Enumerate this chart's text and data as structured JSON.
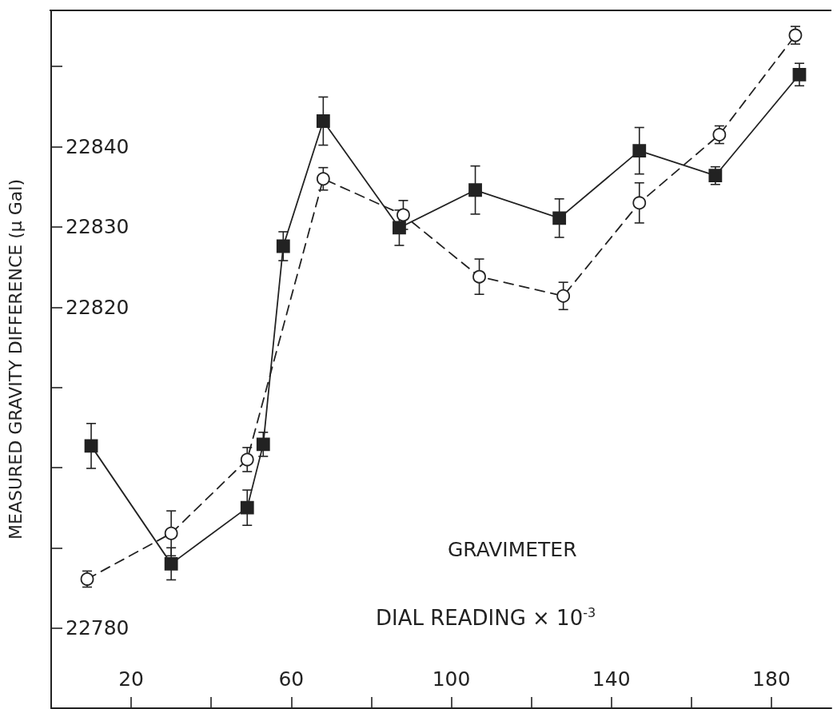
{
  "chart_data": {
    "type": "line",
    "xlabel": "DIAL READING × 10$^{-3}$",
    "ylabel": "MEASURED GRAVITY DIFFERENCE (μ Gal)",
    "annotations": [
      "GRAVIMETER"
    ],
    "xlim": [
      0,
      195
    ],
    "xticks": [
      20,
      {
        "value": 40,
        "label": null
      },
      60,
      {
        "value": 80,
        "label": null
      },
      100,
      {
        "value": 120,
        "label": null
      },
      140,
      {
        "value": 160,
        "label": null
      },
      180
    ],
    "ylim": [
      22770,
      22857
    ],
    "yticks": [
      22780,
      {
        "value": 22790,
        "label": null
      },
      {
        "value": 22800,
        "label": null
      },
      {
        "value": 22810,
        "label": null
      },
      22820,
      22830,
      22840,
      {
        "value": 22850,
        "label": null
      }
    ],
    "grid": false,
    "series": [
      {
        "color": "#222222",
        "marker": "square",
        "line_style": "solid",
        "x": [
          10,
          30,
          49,
          53,
          58,
          68,
          87,
          106,
          127,
          147,
          166,
          187
        ],
        "values": [
          22802.7,
          22788.0,
          22795.0,
          22802.9,
          22827.6,
          22843.2,
          22829.9,
          22834.6,
          22831.1,
          22839.5,
          22836.4,
          22849.0
        ],
        "errors": [
          2.8,
          2.0,
          2.2,
          1.5,
          1.8,
          3.0,
          2.2,
          3.0,
          2.4,
          2.9,
          1.1,
          1.4
        ]
      },
      {
        "color": "#222222",
        "marker": "circle",
        "line_style": "dashed",
        "x": [
          9,
          30,
          49,
          68,
          88,
          107,
          128,
          147,
          167,
          186
        ],
        "values": [
          22786.1,
          22791.8,
          22801.0,
          22836.0,
          22831.5,
          22823.8,
          22821.4,
          22833.0,
          22841.5,
          22853.9
        ],
        "errors": [
          1.0,
          2.8,
          1.5,
          1.4,
          1.8,
          2.2,
          1.7,
          2.5,
          1.1,
          1.1
        ]
      }
    ]
  }
}
